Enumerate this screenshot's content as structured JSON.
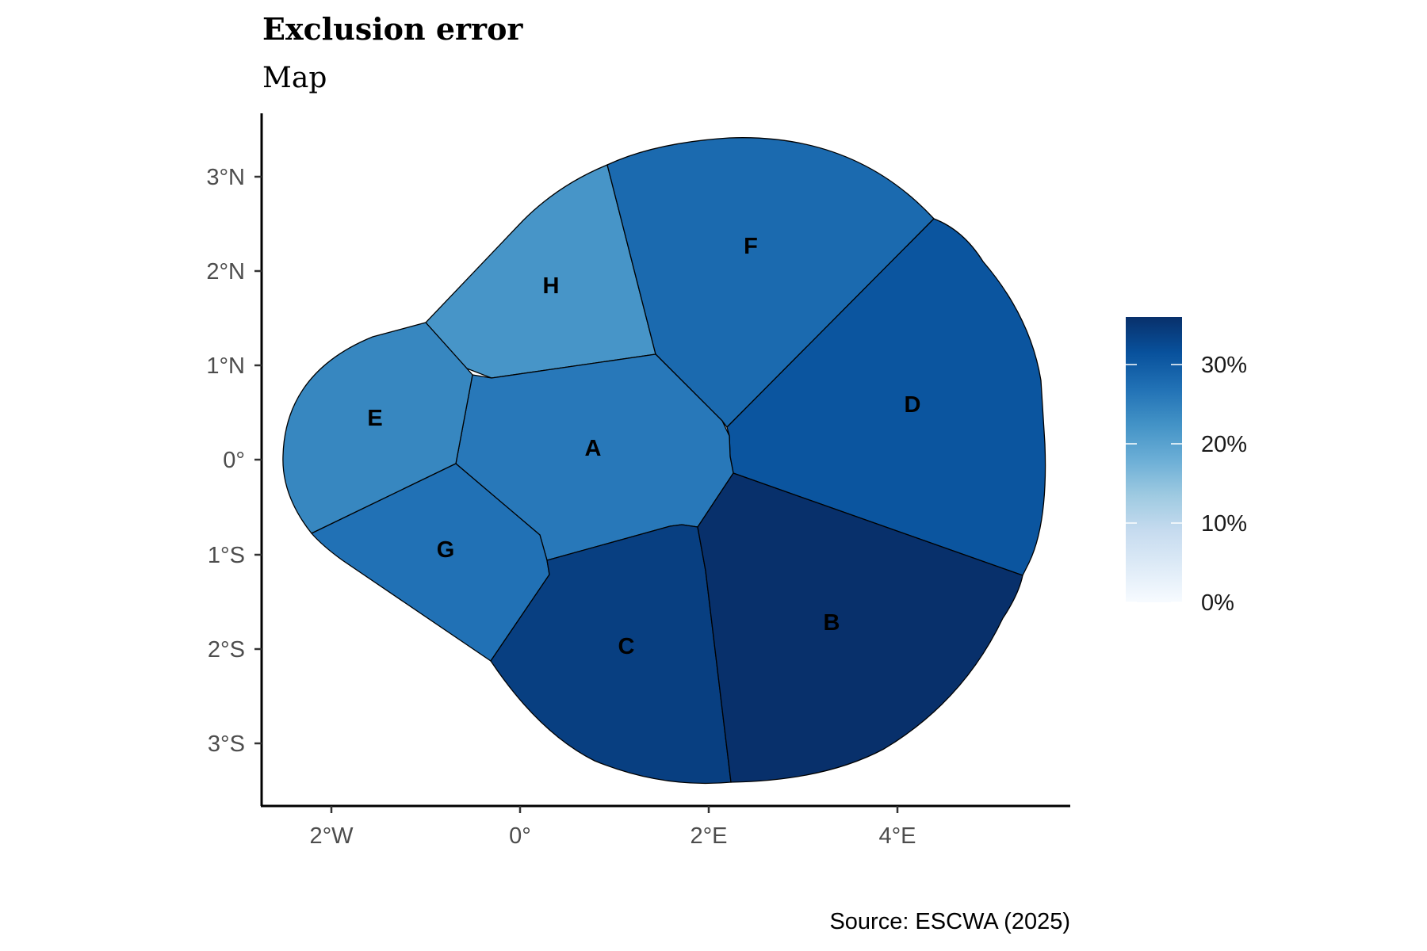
{
  "title": "Exclusion error",
  "subtitle": "Map",
  "caption": "Source: ESCWA (2025)",
  "chart_data": {
    "type": "map",
    "x_ticks": [
      "2°W",
      "0°",
      "2°E",
      "4°E"
    ],
    "y_ticks": [
      "3°N",
      "2°N",
      "1°N",
      "0°",
      "1°S",
      "2°S",
      "3°S"
    ],
    "regions": [
      {
        "name": "A",
        "value": 26
      },
      {
        "name": "B",
        "value": 37
      },
      {
        "name": "C",
        "value": 34
      },
      {
        "name": "D",
        "value": 31
      },
      {
        "name": "E",
        "value": 24
      },
      {
        "name": "F",
        "value": 28
      },
      {
        "name": "G",
        "value": 27
      },
      {
        "name": "H",
        "value": 22
      }
    ],
    "legend": {
      "ticks": [
        "0%",
        "10%",
        "20%",
        "30%"
      ],
      "range": [
        0,
        36
      ],
      "colors": [
        "#f7fbff",
        "#deebf7",
        "#c6dbef",
        "#9ecae1",
        "#6baed6",
        "#4292c6",
        "#2171b5",
        "#08519c",
        "#08306b"
      ]
    }
  }
}
